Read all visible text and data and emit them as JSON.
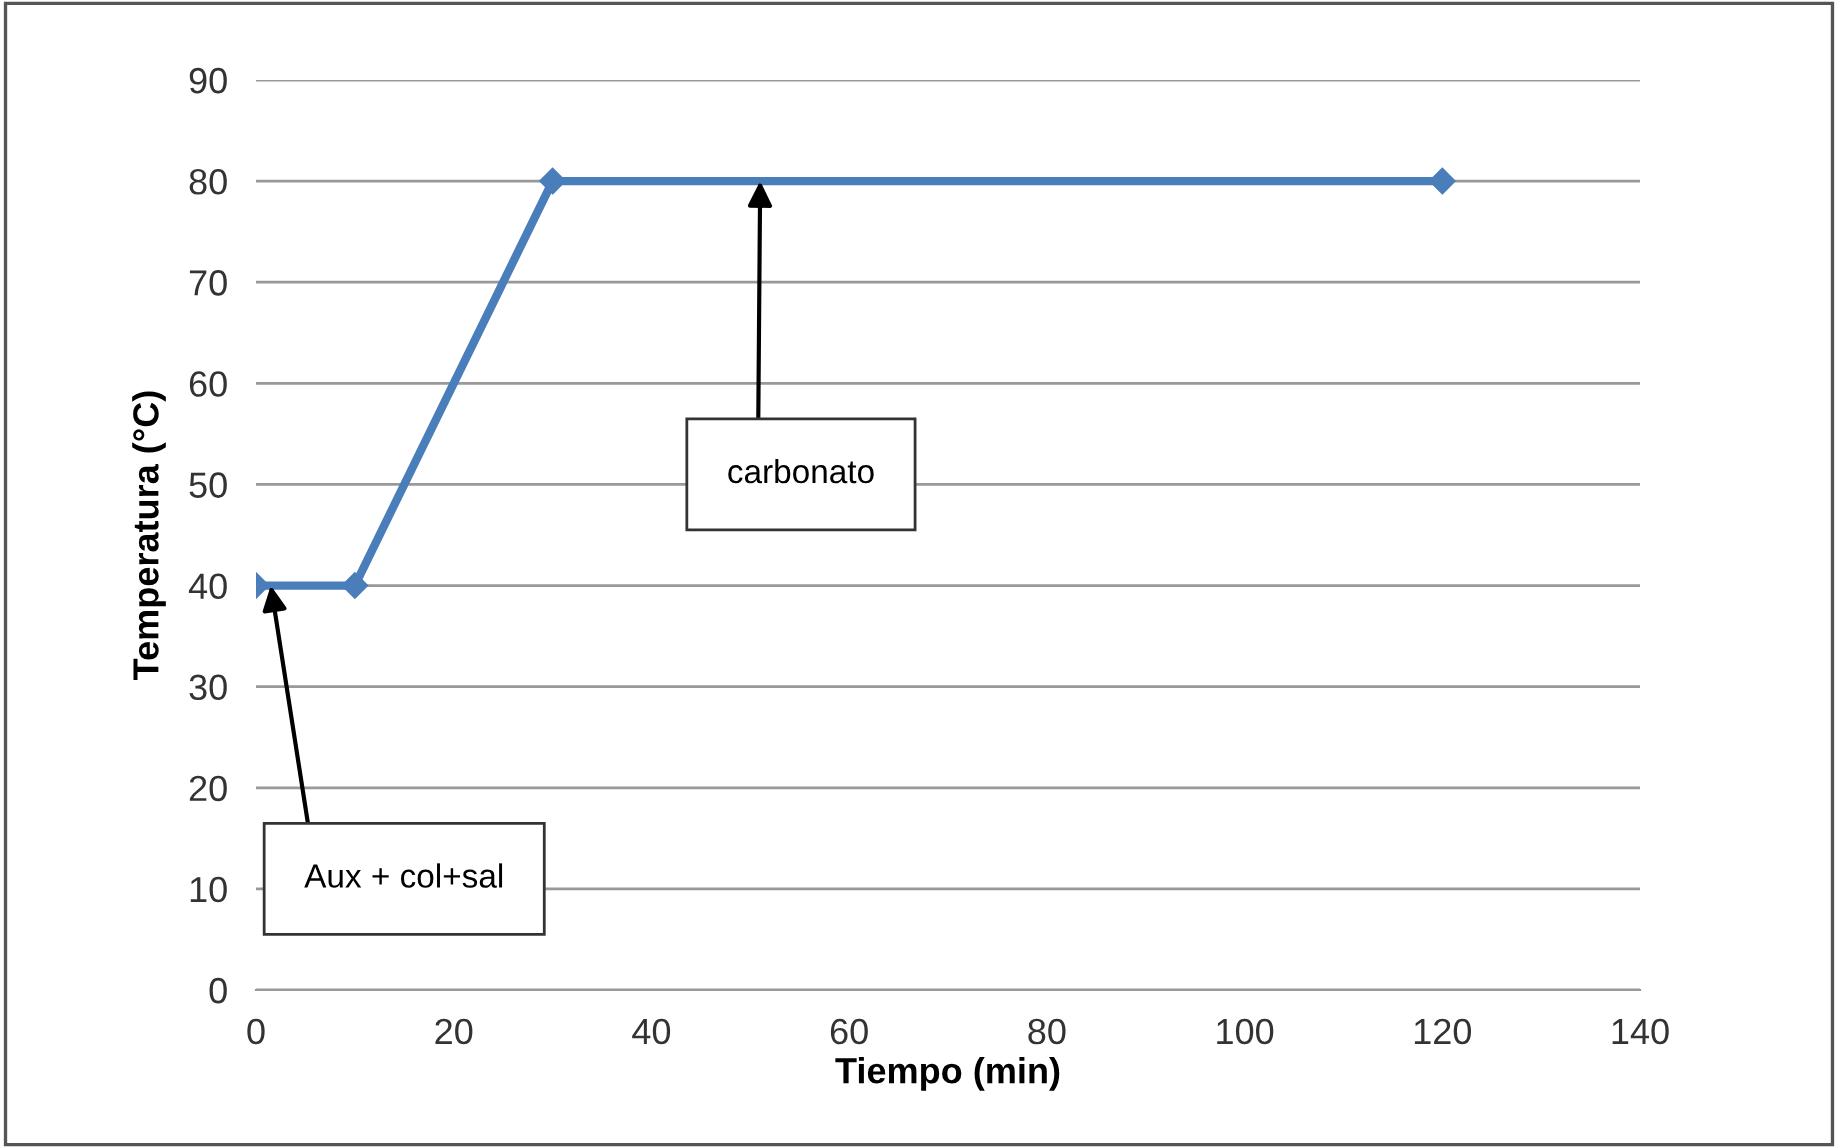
{
  "chart_data": {
    "type": "line",
    "xlabel": "Tiempo (min)",
    "ylabel": "Temperatura (°C)",
    "x": [
      0,
      10,
      30,
      120
    ],
    "series": [
      {
        "color": "#4a7ebb",
        "values": [
          40,
          40,
          80,
          80
        ]
      }
    ],
    "marker": "diamond",
    "line_style": "solid",
    "grid": "y",
    "legend": false,
    "xlim": [
      0,
      140
    ],
    "xticks": [
      0,
      20,
      40,
      60,
      80,
      100,
      120,
      140
    ],
    "ylim": [
      0,
      90
    ],
    "yticks": [
      0,
      10,
      20,
      30,
      40,
      50,
      60,
      70,
      80,
      90
    ],
    "annotations": [
      {
        "text": "carbonato",
        "x": 51,
        "y": 80
      },
      {
        "text": "Aux + col+sal",
        "x": 1.5,
        "y": 40
      }
    ]
  }
}
